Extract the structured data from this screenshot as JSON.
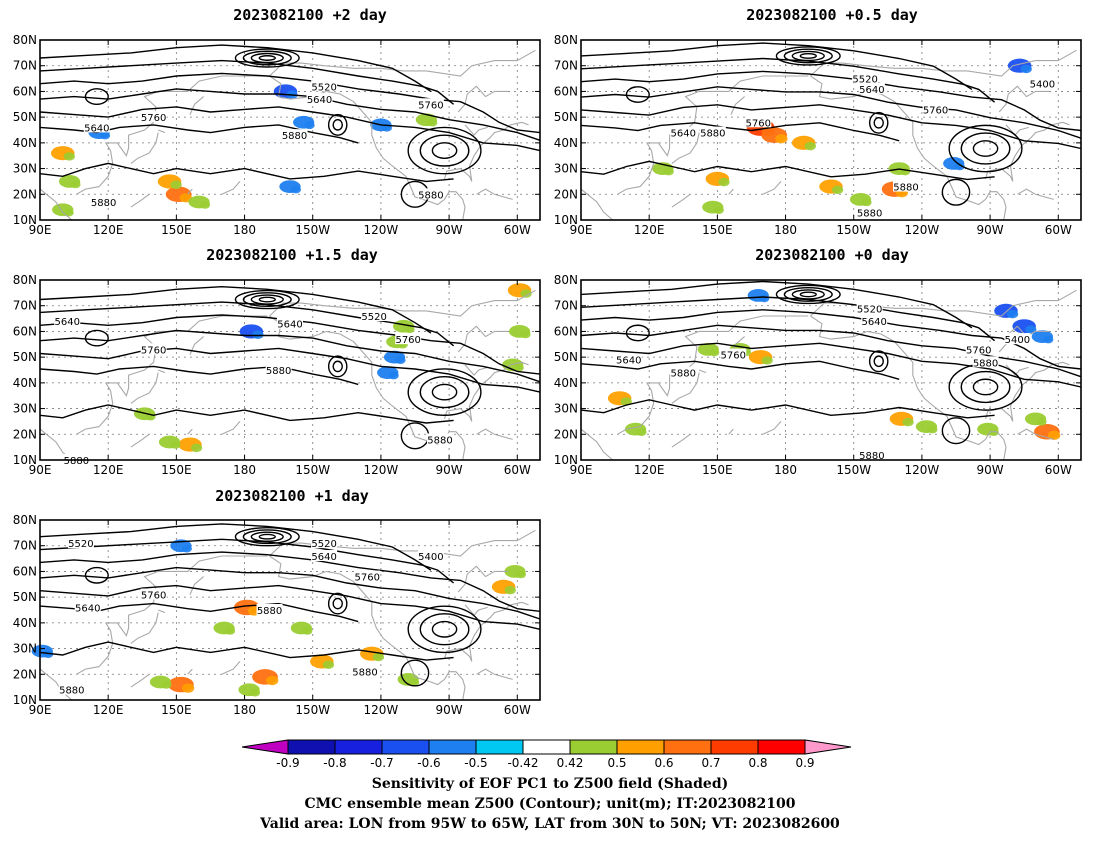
{
  "panels": [
    {
      "id": "p2d",
      "title": "2023082100 +2 day",
      "contour_labels": [
        {
          "text": "5520",
          "lon": 215,
          "lat": 62
        },
        {
          "text": "5640",
          "lon": 213,
          "lat": 57
        },
        {
          "text": "5760",
          "lon": 262,
          "lat": 55
        },
        {
          "text": "5640",
          "lon": 115,
          "lat": 46
        },
        {
          "text": "5760",
          "lon": 140,
          "lat": 50
        },
        {
          "text": "5880",
          "lon": 202,
          "lat": 43
        },
        {
          "text": "5880",
          "lon": 118,
          "lat": 17
        },
        {
          "text": "5880",
          "lon": 262,
          "lat": 20
        }
      ],
      "shades": [
        {
          "lon": 198,
          "lat": 60,
          "v": -0.6
        },
        {
          "lon": 116,
          "lat": 44,
          "v": -0.5
        },
        {
          "lon": 206,
          "lat": 48,
          "v": -0.5
        },
        {
          "lon": 240,
          "lat": 47,
          "v": -0.5
        },
        {
          "lon": 200,
          "lat": 23,
          "v": -0.5
        },
        {
          "lon": 151,
          "lat": 20,
          "v": 0.7
        },
        {
          "lon": 147,
          "lat": 25,
          "v": 0.6
        },
        {
          "lon": 160,
          "lat": 17,
          "v": 0.5
        },
        {
          "lon": 260,
          "lat": 49,
          "v": 0.5
        },
        {
          "lon": 100,
          "lat": 36,
          "v": 0.6
        },
        {
          "lon": 103,
          "lat": 25,
          "v": 0.5
        },
        {
          "lon": 100,
          "lat": 14,
          "v": 0.5
        }
      ]
    },
    {
      "id": "p05d",
      "title": "2023082100 +0.5 day",
      "contour_labels": [
        {
          "text": "5520",
          "lon": 215,
          "lat": 65
        },
        {
          "text": "5640",
          "lon": 218,
          "lat": 61
        },
        {
          "text": "5400",
          "lon": 293,
          "lat": 63
        },
        {
          "text": "5760",
          "lon": 246,
          "lat": 53
        },
        {
          "text": "5640",
          "lon": 135,
          "lat": 44
        },
        {
          "text": "5880",
          "lon": 148,
          "lat": 44
        },
        {
          "text": "5760",
          "lon": 168,
          "lat": 48
        },
        {
          "text": "5880",
          "lon": 233,
          "lat": 23
        },
        {
          "text": "5880",
          "lon": 217,
          "lat": 13
        }
      ],
      "shades": [
        {
          "lon": 283,
          "lat": 70,
          "v": -0.6
        },
        {
          "lon": 254,
          "lat": 32,
          "v": -0.5
        },
        {
          "lon": 169,
          "lat": 46,
          "v": 0.8
        },
        {
          "lon": 175,
          "lat": 43,
          "v": 0.7
        },
        {
          "lon": 188,
          "lat": 40,
          "v": 0.6
        },
        {
          "lon": 228,
          "lat": 22,
          "v": 0.7
        },
        {
          "lon": 200,
          "lat": 23,
          "v": 0.6
        },
        {
          "lon": 150,
          "lat": 26,
          "v": 0.6
        },
        {
          "lon": 148,
          "lat": 15,
          "v": 0.5
        },
        {
          "lon": 126,
          "lat": 30,
          "v": 0.5
        },
        {
          "lon": 213,
          "lat": 18,
          "v": 0.5
        },
        {
          "lon": 230,
          "lat": 30,
          "v": 0.5
        }
      ]
    },
    {
      "id": "p15d",
      "title": "2023082100 +1.5 day",
      "contour_labels": [
        {
          "text": "5640",
          "lon": 102,
          "lat": 64
        },
        {
          "text": "5640",
          "lon": 200,
          "lat": 63
        },
        {
          "text": "5520",
          "lon": 237,
          "lat": 66
        },
        {
          "text": "5760",
          "lon": 140,
          "lat": 53
        },
        {
          "text": "5760",
          "lon": 252,
          "lat": 57
        },
        {
          "text": "5880",
          "lon": 195,
          "lat": 45
        },
        {
          "text": "5880",
          "lon": 266,
          "lat": 18
        },
        {
          "text": "5880",
          "lon": 106,
          "lat": 10
        }
      ],
      "shades": [
        {
          "lon": 183,
          "lat": 60,
          "v": -0.6
        },
        {
          "lon": 246,
          "lat": 50,
          "v": -0.5
        },
        {
          "lon": 243,
          "lat": 44,
          "v": -0.5
        },
        {
          "lon": 156,
          "lat": 16,
          "v": 0.6
        },
        {
          "lon": 147,
          "lat": 17,
          "v": 0.5
        },
        {
          "lon": 136,
          "lat": 28,
          "v": 0.5
        },
        {
          "lon": 247,
          "lat": 56,
          "v": 0.5
        },
        {
          "lon": 250,
          "lat": 62,
          "v": 0.5
        },
        {
          "lon": 301,
          "lat": 76,
          "v": 0.6
        },
        {
          "lon": 301,
          "lat": 60,
          "v": 0.5
        },
        {
          "lon": 298,
          "lat": 47,
          "v": 0.5
        }
      ]
    },
    {
      "id": "p0d",
      "title": "2023082100 +0 day",
      "contour_labels": [
        {
          "text": "5520",
          "lon": 217,
          "lat": 69
        },
        {
          "text": "5640",
          "lon": 219,
          "lat": 64
        },
        {
          "text": "5400",
          "lon": 282,
          "lat": 57
        },
        {
          "text": "5760",
          "lon": 265,
          "lat": 53
        },
        {
          "text": "5880",
          "lon": 268,
          "lat": 48
        },
        {
          "text": "5640",
          "lon": 111,
          "lat": 49
        },
        {
          "text": "5760",
          "lon": 157,
          "lat": 51
        },
        {
          "text": "5880",
          "lon": 135,
          "lat": 44
        },
        {
          "text": "5880",
          "lon": 218,
          "lat": 12
        }
      ],
      "shades": [
        {
          "lon": 277,
          "lat": 68,
          "v": -0.6
        },
        {
          "lon": 285,
          "lat": 62,
          "v": -0.6
        },
        {
          "lon": 293,
          "lat": 58,
          "v": -0.5
        },
        {
          "lon": 168,
          "lat": 74,
          "v": -0.5
        },
        {
          "lon": 231,
          "lat": 26,
          "v": 0.6
        },
        {
          "lon": 242,
          "lat": 23,
          "v": 0.5
        },
        {
          "lon": 295,
          "lat": 21,
          "v": 0.7
        },
        {
          "lon": 290,
          "lat": 26,
          "v": 0.5
        },
        {
          "lon": 146,
          "lat": 53,
          "v": 0.5
        },
        {
          "lon": 160,
          "lat": 53,
          "v": 0.5
        },
        {
          "lon": 169,
          "lat": 50,
          "v": 0.6
        },
        {
          "lon": 107,
          "lat": 34,
          "v": 0.6
        },
        {
          "lon": 114,
          "lat": 22,
          "v": 0.5
        },
        {
          "lon": 269,
          "lat": 22,
          "v": 0.5
        }
      ]
    },
    {
      "id": "p1d",
      "title": "2023082100 +1 day",
      "contour_labels": [
        {
          "text": "5520",
          "lon": 108,
          "lat": 71
        },
        {
          "text": "5520",
          "lon": 215,
          "lat": 71
        },
        {
          "text": "5640",
          "lon": 215,
          "lat": 66
        },
        {
          "text": "5400",
          "lon": 262,
          "lat": 66
        },
        {
          "text": "5760",
          "lon": 234,
          "lat": 58
        },
        {
          "text": "5640",
          "lon": 111,
          "lat": 46
        },
        {
          "text": "5760",
          "lon": 140,
          "lat": 51
        },
        {
          "text": "5880",
          "lon": 191,
          "lat": 45
        },
        {
          "text": "5880",
          "lon": 233,
          "lat": 21
        },
        {
          "text": "5880",
          "lon": 104,
          "lat": 14
        }
      ],
      "shades": [
        {
          "lon": 91,
          "lat": 29,
          "v": -0.5
        },
        {
          "lon": 152,
          "lat": 70,
          "v": -0.5
        },
        {
          "lon": 181,
          "lat": 46,
          "v": 0.7
        },
        {
          "lon": 171,
          "lat": 38,
          "v": 0.5
        },
        {
          "lon": 189,
          "lat": 19,
          "v": 0.7
        },
        {
          "lon": 182,
          "lat": 14,
          "v": 0.5
        },
        {
          "lon": 152,
          "lat": 16,
          "v": 0.7
        },
        {
          "lon": 143,
          "lat": 17,
          "v": 0.5
        },
        {
          "lon": 214,
          "lat": 25,
          "v": 0.6
        },
        {
          "lon": 236,
          "lat": 28,
          "v": 0.6
        },
        {
          "lon": 252,
          "lat": 18,
          "v": 0.5
        },
        {
          "lon": 294,
          "lat": 54,
          "v": 0.6
        },
        {
          "lon": 299,
          "lat": 60,
          "v": 0.5
        },
        {
          "lon": 205,
          "lat": 38,
          "v": 0.5
        }
      ]
    }
  ],
  "axes": {
    "lat_ticks": [
      "80N",
      "70N",
      "60N",
      "50N",
      "40N",
      "30N",
      "20N",
      "10N"
    ],
    "lon_ticks": [
      "90E",
      "120E",
      "150E",
      "180",
      "150W",
      "120W",
      "90W",
      "60W"
    ]
  },
  "colorbar": {
    "labels": [
      "-0.9",
      "-0.8",
      "-0.7",
      "-0.6",
      "-0.5",
      "-0.42",
      "0.42",
      "0.5",
      "0.6",
      "0.7",
      "0.8",
      "0.9"
    ],
    "colors": [
      "#c000c0",
      "#1010b0",
      "#1820e0",
      "#1a50f0",
      "#1e80f0",
      "#00c8f0",
      "#ffffff",
      "#9acd32",
      "#ffa000",
      "#ff7010",
      "#ff3c00",
      "#ff0000",
      "#ff99cc"
    ]
  },
  "footer": {
    "line1": "Sensitivity of EOF PC1 to Z500 field (Shaded)",
    "line2": "CMC ensemble mean Z500 (Contour); unit(m); IT:2023082100",
    "line3": "Valid area: LON from 95W to 65W, LAT from 30N to 50N; VT: 2023082600"
  }
}
